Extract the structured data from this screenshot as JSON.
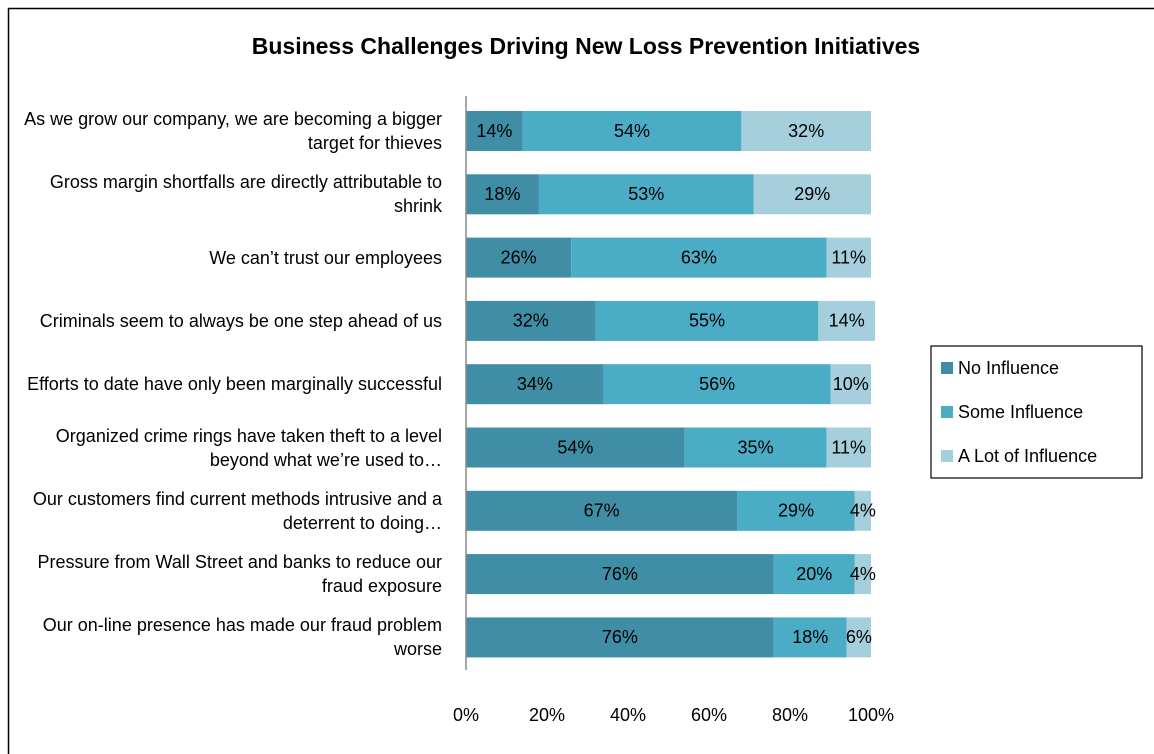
{
  "chart_data": {
    "type": "stacked-bar-horizontal",
    "title": "Business Challenges Driving New Loss Prevention Initiatives",
    "categories": [
      "As we grow our company, we are becoming a bigger target for thieves",
      "Gross margin shortfalls are directly attributable to shrink",
      "We can’t trust our employees",
      "Criminals seem to always be one step ahead of us",
      "Efforts to date have only been marginally successful",
      "Organized crime rings have taken theft to a level beyond what we’re used to…",
      "Our customers find current methods intrusive and a deterrent to doing…",
      "Pressure from Wall Street and banks to reduce our fraud exposure",
      "Our on-line presence has made our fraud problem worse"
    ],
    "series": [
      {
        "name": "No Influence",
        "color": "#3f8ea6",
        "values": [
          14,
          18,
          26,
          32,
          34,
          54,
          67,
          76,
          76
        ],
        "value_labels": [
          "14%",
          "18%",
          "26%",
          "32%",
          "34%",
          "54%",
          "67%",
          "76%",
          "76%"
        ]
      },
      {
        "name": "Some Influence",
        "color": "#4bacc6",
        "values": [
          54,
          53,
          63,
          55,
          56,
          35,
          29,
          20,
          18
        ],
        "value_labels": [
          "54%",
          "53%",
          "63%",
          "55%",
          "56%",
          "35%",
          "29%",
          "20%",
          "18%"
        ]
      },
      {
        "name": "A Lot of Influence",
        "color": "#a5cfdc",
        "values": [
          32,
          29,
          11,
          14,
          10,
          11,
          4,
          4,
          6
        ],
        "value_labels": [
          "32%",
          "29%",
          "11%",
          "14%",
          "10%",
          "11%",
          "4%",
          "4%",
          "6%"
        ]
      }
    ],
    "xlim": [
      0,
      100
    ],
    "xticks": [
      {
        "value": 0,
        "label": "0%"
      },
      {
        "value": 20,
        "label": "20%"
      },
      {
        "value": 40,
        "label": "40%"
      },
      {
        "value": 60,
        "label": "60%"
      },
      {
        "value": 80,
        "label": "80%"
      },
      {
        "value": 100,
        "label": "100%"
      }
    ],
    "legend": "right"
  }
}
